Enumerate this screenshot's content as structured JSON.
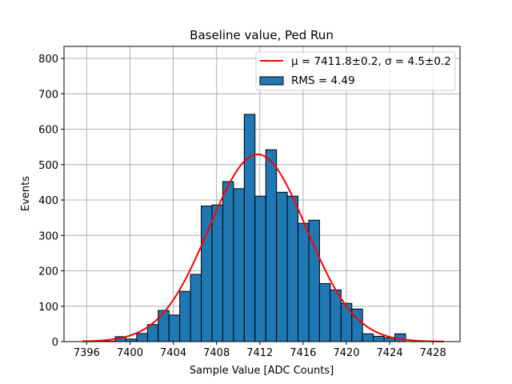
{
  "chart_data": {
    "type": "bar",
    "title": "Baseline value, Ped Run",
    "xlabel": "Sample Value [ADC Counts]",
    "ylabel": "Events",
    "xlim": [
      7393.9,
      7430.5
    ],
    "ylim": [
      0,
      834
    ],
    "xticks": [
      7396,
      7400,
      7404,
      7408,
      7412,
      7416,
      7420,
      7424,
      7428
    ],
    "yticks": [
      0,
      100,
      200,
      300,
      400,
      500,
      600,
      700,
      800
    ],
    "grid": true,
    "legend_position": "top-right",
    "histogram": {
      "name": "RMS = 4.49",
      "bin_start": 7395.65,
      "bin_width": 0.994,
      "values": [
        2,
        1,
        1,
        14,
        7,
        23,
        48,
        88,
        75,
        142,
        190,
        383,
        386,
        452,
        432,
        642,
        411,
        542,
        422,
        411,
        334,
        343,
        164,
        146,
        108,
        92,
        22,
        15,
        11,
        22
      ],
      "color": "#1f77b4"
    },
    "fit": {
      "name": "μ = 7411.8±0.2, σ = 4.5±0.2",
      "mu": 7411.8,
      "sigma": 4.5,
      "amplitude": 529,
      "x_range": [
        7395.6,
        7429
      ],
      "color": "#ff0000"
    }
  }
}
